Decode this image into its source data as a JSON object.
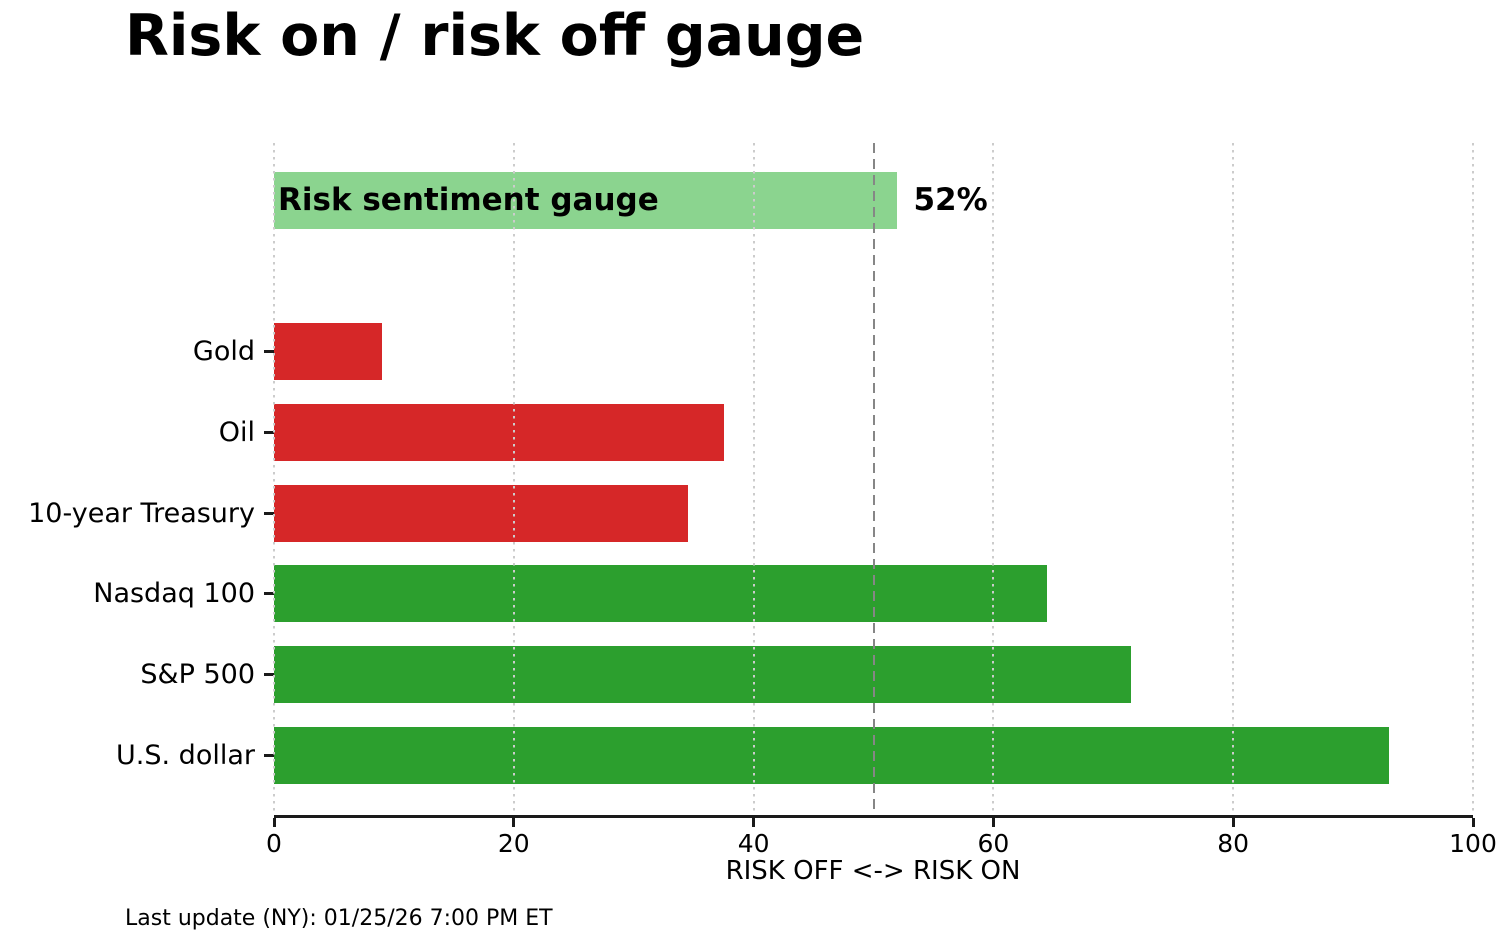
{
  "title": "Risk on / risk off gauge",
  "footnote": "Last update (NY): 01/25/26 7:00 PM ET",
  "chart_data": {
    "type": "bar",
    "orientation": "horizontal",
    "title": "Risk on / risk off gauge",
    "xlabel": "RISK OFF <-> RISK ON",
    "xlim": [
      0,
      100
    ],
    "xticks": [
      0,
      20,
      40,
      60,
      80,
      100
    ],
    "grid": "vertical dotted gridlines at each x tick",
    "threshold_line": {
      "x": 50,
      "style": "dashed"
    },
    "gauge": {
      "label": "Risk sentiment gauge",
      "value": 52,
      "value_label": "52%"
    },
    "categories": [
      "Gold",
      "Oil",
      "10-year Treasury",
      "Nasdaq 100",
      "S&P 500",
      "U.S. dollar"
    ],
    "values": [
      9,
      37.5,
      34.5,
      64.5,
      71.5,
      93
    ],
    "bar_color_keys": [
      "risk_off",
      "risk_off",
      "risk_off",
      "risk_on",
      "risk_on",
      "risk_on"
    ],
    "colors": {
      "risk_off": "#d62728",
      "risk_on": "#2c9f2e",
      "gauge": "#8bd48f",
      "threshold_line": "#868686",
      "grid_line": "#cccccc",
      "axis_line": "#1a1a1a",
      "text": "#000000"
    }
  }
}
